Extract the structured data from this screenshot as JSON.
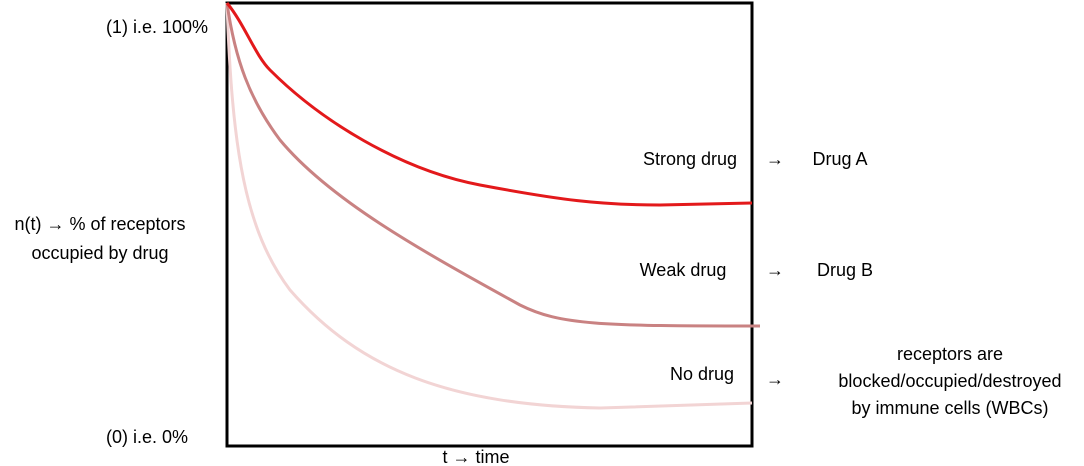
{
  "y_axis": {
    "top": "(1) i.e. 100%",
    "label": [
      "n(t) → % of receptors",
      "occupied by drug"
    ],
    "bottom": "(0) i.e. 0%"
  },
  "x_axis": {
    "label": "t → time"
  },
  "rows": [
    {
      "label": "Strong drug",
      "arrow": "→",
      "result": [
        "Drug A"
      ]
    },
    {
      "label": "Weak drug",
      "arrow": "→",
      "result": [
        "Drug B"
      ]
    },
    {
      "label": "No drug",
      "arrow": "→",
      "result": [
        "receptors are",
        "blocked/occupied/destroyed",
        "by immune cells (WBCs)"
      ]
    }
  ]
}
